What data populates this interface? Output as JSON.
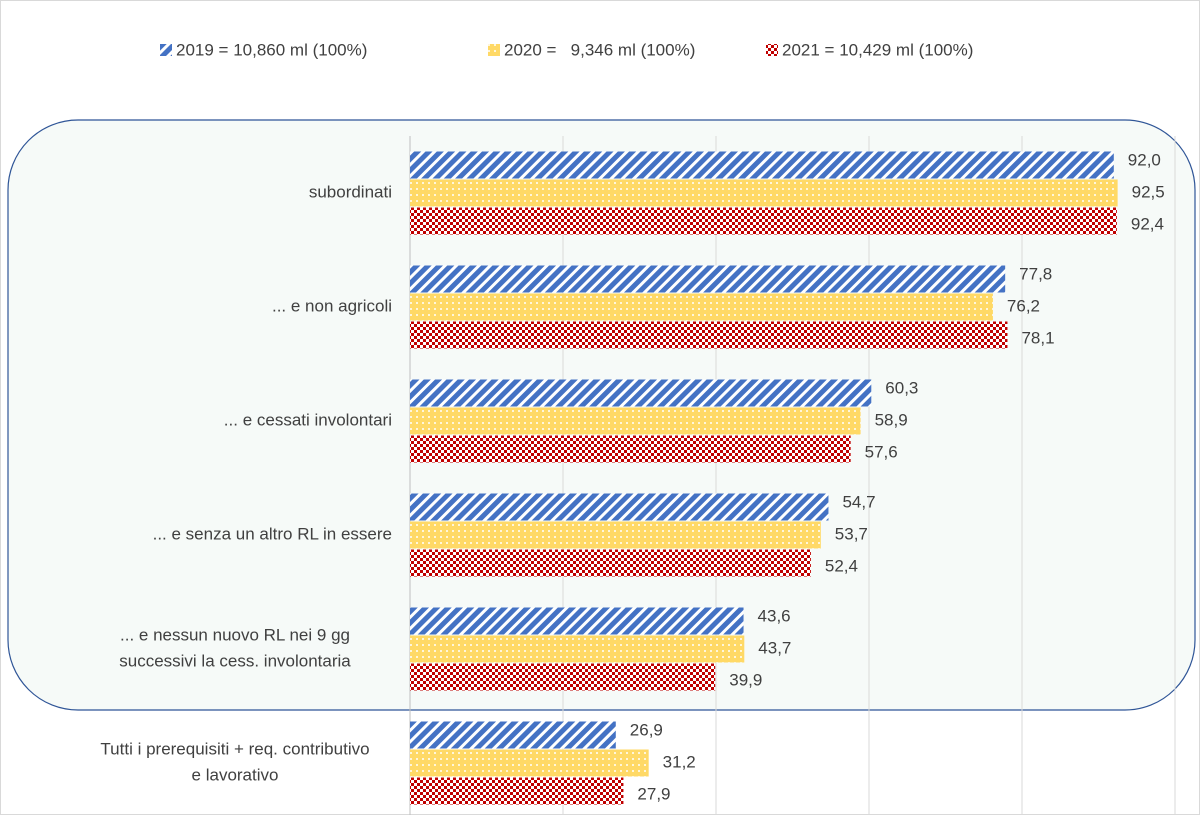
{
  "chart_data": {
    "type": "bar",
    "orientation": "horizontal",
    "categories": [
      [
        "subordinati"
      ],
      [
        "... e non agricoli"
      ],
      [
        "... e cessati involontari"
      ],
      [
        "... e senza un altro RL in essere"
      ],
      [
        "... e nessun nuovo RL nei 9 gg",
        "successivi la cess. involontaria"
      ],
      [
        "Tutti i prerequisiti + req. contributivo",
        "e lavorativo"
      ]
    ],
    "series": [
      {
        "name": "2019 = 10,860 ml (100%)",
        "color": "#4472c4",
        "values": [
          92.0,
          77.8,
          60.3,
          54.7,
          43.6,
          26.9
        ],
        "value_labels": [
          "92,0",
          "77,8",
          "60,3",
          "54,7",
          "43,6",
          "26,9"
        ]
      },
      {
        "name": "2020 =   9,346 ml (100%)",
        "color": "#ffd966",
        "values": [
          92.5,
          76.2,
          58.9,
          53.7,
          43.7,
          31.2
        ],
        "value_labels": [
          "92,5",
          "76,2",
          "58,9",
          "53,7",
          "43,7",
          "31,2"
        ]
      },
      {
        "name": "2021 = 10,429 ml (100%)",
        "color": "#c00000",
        "values": [
          92.4,
          78.1,
          57.6,
          52.4,
          39.9,
          27.9
        ],
        "value_labels": [
          "92,4",
          "78,1",
          "57,6",
          "52,4",
          "39,9",
          "27,9"
        ]
      }
    ],
    "xlim": [
      0,
      100
    ],
    "xticks": [
      0,
      20,
      40,
      60,
      80,
      100
    ],
    "grid": true,
    "legend": "top"
  }
}
